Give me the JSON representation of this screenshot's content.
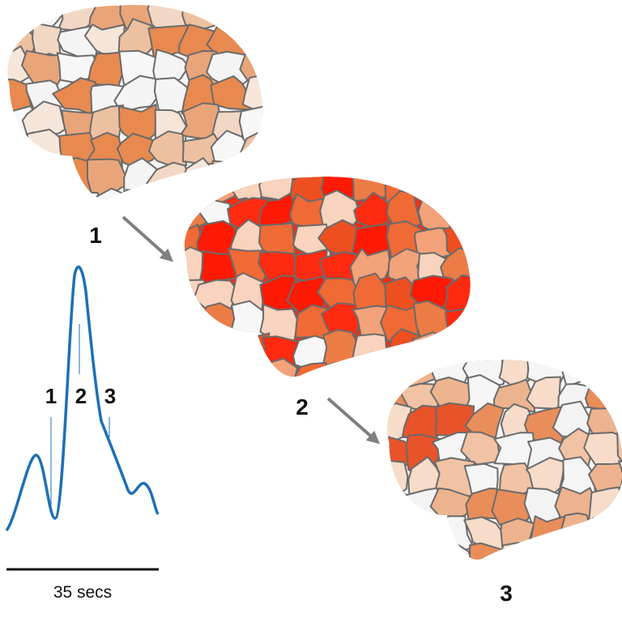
{
  "brains": [
    {
      "label": "1"
    },
    {
      "label": "2"
    },
    {
      "label": "3"
    }
  ],
  "trace": {
    "markers": [
      "1",
      "2",
      "3"
    ]
  },
  "scale_bar": {
    "label": "35 secs"
  }
}
